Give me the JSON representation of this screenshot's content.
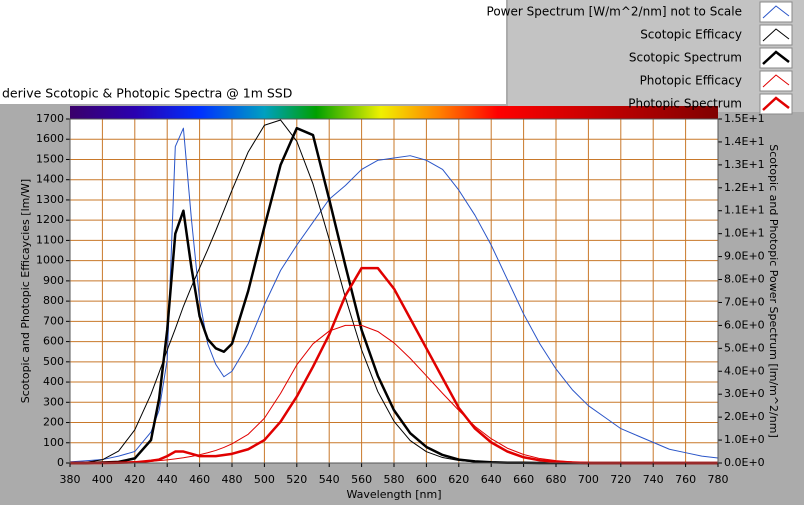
{
  "chart_data": {
    "type": "line",
    "title": "derive Scotopic & Photopic Spectra @ 1m SSD",
    "x_label": "Wavelength [nm]",
    "y_label": "Scotopic and Photopic Efficaycies [lm/W]",
    "y2_label": "Scotopic and Photopic Power Spectrum [lm/m^2/nm]",
    "x": [
      380,
      390,
      400,
      410,
      420,
      430,
      435,
      440,
      445,
      450,
      455,
      460,
      465,
      470,
      475,
      480,
      490,
      500,
      510,
      520,
      530,
      540,
      550,
      560,
      570,
      580,
      590,
      600,
      610,
      620,
      630,
      640,
      650,
      660,
      670,
      680,
      690,
      700,
      710,
      720,
      730,
      740,
      750,
      760,
      770,
      780
    ],
    "xlim": [
      380,
      780
    ],
    "xticks": [
      380,
      400,
      420,
      440,
      460,
      480,
      500,
      520,
      540,
      560,
      580,
      600,
      620,
      640,
      660,
      680,
      700,
      720,
      740,
      760,
      780
    ],
    "ylim": [
      0,
      1700
    ],
    "yticks": [
      0,
      100,
      200,
      300,
      400,
      500,
      600,
      700,
      800,
      900,
      1000,
      1100,
      1200,
      1300,
      1400,
      1500,
      1600,
      1700
    ],
    "y2lim": [
      0,
      15
    ],
    "y2ticks": [
      {
        "value": 0,
        "label": "0.0E+0"
      },
      {
        "value": 1,
        "label": "1.0E+0"
      },
      {
        "value": 2,
        "label": "2.0E+0"
      },
      {
        "value": 3,
        "label": "3.0E+0"
      },
      {
        "value": 4,
        "label": "4.0E+0"
      },
      {
        "value": 5,
        "label": "5.0E+0"
      },
      {
        "value": 6,
        "label": "6.0E+0"
      },
      {
        "value": 7,
        "label": "7.0E+0"
      },
      {
        "value": 8,
        "label": "8.0E+0"
      },
      {
        "value": 9,
        "label": "9.0E+0"
      },
      {
        "value": 10,
        "label": "1.0E+1"
      },
      {
        "value": 11,
        "label": "1.1E+1"
      },
      {
        "value": 12,
        "label": "1.2E+1"
      },
      {
        "value": 13,
        "label": "1.3E+1"
      },
      {
        "value": 14,
        "label": "1.4E+1"
      },
      {
        "value": 15,
        "label": "1.5E+1"
      }
    ],
    "grid": true,
    "grid_color": "#c8782a",
    "legend": "top-right",
    "series": [
      {
        "name": "Power Spectrum [W/m^2/nm] not to Scale",
        "color": "#2a55c8",
        "width": 1,
        "axis": "y2",
        "values": [
          0.05,
          0.1,
          0.15,
          0.3,
          0.5,
          1.35,
          2.3,
          4.5,
          13.8,
          14.6,
          10.6,
          7.1,
          5.2,
          4.3,
          3.76,
          4.0,
          5.2,
          6.9,
          8.4,
          9.5,
          10.5,
          11.5,
          12.1,
          12.8,
          13.2,
          13.3,
          13.4,
          13.2,
          12.8,
          11.9,
          10.8,
          9.5,
          8.0,
          6.5,
          5.2,
          4.1,
          3.2,
          2.5,
          2.0,
          1.5,
          1.2,
          0.9,
          0.6,
          0.45,
          0.3,
          0.22
        ]
      },
      {
        "name": "Scotopic Efficacy",
        "color": "#000000",
        "width": 1,
        "values": [
          1.0,
          3.75,
          15.8,
          59,
          164,
          340,
          447,
          558,
          663,
          774,
          872,
          964,
          1054,
          1149,
          1248,
          1348,
          1537,
          1669,
          1695,
          1590,
          1379,
          1105,
          818,
          559,
          353,
          206,
          111,
          56,
          27,
          12.5,
          5.7,
          2.5,
          1.2,
          0.5,
          0.25,
          0.12,
          0.06,
          0.03,
          0.01,
          0.01,
          0.01,
          0.01,
          0.01,
          0.01,
          0.01,
          0.01
        ]
      },
      {
        "name": "Scotopic Spectrum",
        "color": "#000000",
        "width": 2.5,
        "axis": "y2",
        "values": [
          0,
          0,
          0.02,
          0.05,
          0.2,
          1.0,
          2.8,
          5.8,
          10.0,
          11.0,
          8.5,
          6.4,
          5.4,
          5.0,
          4.85,
          5.2,
          7.5,
          10.3,
          13.0,
          14.6,
          14.3,
          11.5,
          8.6,
          5.8,
          3.8,
          2.3,
          1.3,
          0.7,
          0.35,
          0.15,
          0.07,
          0.03,
          0.01,
          0.01,
          0,
          0,
          0,
          0,
          0,
          0,
          0,
          0,
          0,
          0,
          0,
          0
        ]
      },
      {
        "name": "Photopic Efficacy",
        "color": "#e00000",
        "width": 1,
        "values": [
          0.03,
          0.08,
          0.27,
          0.83,
          2.7,
          7.9,
          11.5,
          15.7,
          20.4,
          26,
          32.8,
          41,
          50.5,
          62,
          77,
          95,
          142,
          221,
          344,
          485,
          589,
          652,
          680,
          680,
          650,
          594,
          517,
          431,
          344,
          260,
          181,
          120,
          73,
          42,
          22,
          11.6,
          5.6,
          2.8,
          1.4,
          0.7,
          0.36,
          0.17,
          0.08,
          0.04,
          0.02,
          0.01
        ]
      },
      {
        "name": "Photopic Spectrum",
        "color": "#e00000",
        "width": 2.5,
        "axis": "y2",
        "values": [
          0,
          0,
          0,
          0.01,
          0.03,
          0.1,
          0.15,
          0.3,
          0.5,
          0.5,
          0.4,
          0.3,
          0.3,
          0.3,
          0.35,
          0.4,
          0.6,
          1.0,
          1.8,
          2.9,
          4.2,
          5.6,
          7.3,
          8.5,
          8.5,
          7.6,
          6.3,
          5.0,
          3.7,
          2.4,
          1.5,
          0.9,
          0.5,
          0.25,
          0.12,
          0.05,
          0.02,
          0,
          0,
          0,
          0,
          0,
          0,
          0,
          0,
          0
        ]
      }
    ]
  }
}
